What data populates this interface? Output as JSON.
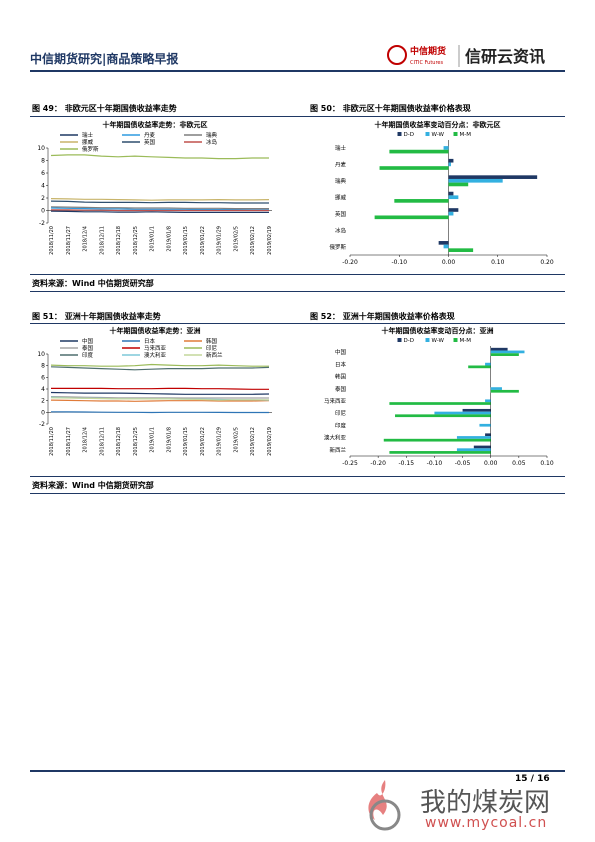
{
  "header": {
    "left": "中信期货研究|商品策略早报",
    "logo_cn": "中信期货",
    "logo_en": "CITIC Futures",
    "brand": "信研云资讯"
  },
  "figures": [
    {
      "number": "图 49：",
      "title": "非欧元区十年期国债收益率走势"
    },
    {
      "number": "图 50：",
      "title": "非欧元区十年期国债收益率价格表现"
    },
    {
      "number": "图 51：",
      "title": "亚洲十年期国债收益率走势"
    },
    {
      "number": "图 52：",
      "title": "亚洲十年期国债收益率价格表现"
    }
  ],
  "sources": [
    "资料来源：Wind  中信期货研究部",
    "资料来源：Wind  中信期货研究部"
  ],
  "footer": {
    "page": "15 / 16"
  },
  "watermark": {
    "cn": "我的煤炭网",
    "url": "www.mycoal.cn"
  },
  "chart_data": [
    {
      "type": "line",
      "title": "十年期国债收益率走势：非欧元区",
      "categories": [
        "2018/11/20",
        "2018/11/27",
        "2018/12/4",
        "2018/12/11",
        "2018/12/18",
        "2018/12/25",
        "2019/01/1",
        "2019/01/8",
        "2019/01/15",
        "2019/01/22",
        "2019/01/29",
        "2019/02/5",
        "2019/02/12",
        "2019/02/19"
      ],
      "ylim": [
        -2,
        10
      ],
      "yticks": [
        -2,
        0,
        2,
        4,
        6,
        8,
        10
      ],
      "series": [
        {
          "name": "瑞士",
          "color": "#1f3864",
          "values": [
            -0.1,
            -0.15,
            -0.2,
            -0.2,
            -0.25,
            -0.25,
            -0.2,
            -0.25,
            -0.3,
            -0.3,
            -0.3,
            -0.3,
            -0.3,
            -0.3
          ]
        },
        {
          "name": "丹麦",
          "color": "#2e9be0",
          "values": [
            0.4,
            0.35,
            0.3,
            0.25,
            0.25,
            0.2,
            0.2,
            0.2,
            0.2,
            0.15,
            0.15,
            0.15,
            0.1,
            0.1
          ]
        },
        {
          "name": "瑞典",
          "color": "#7f7f7f",
          "values": [
            0.6,
            0.55,
            0.5,
            0.45,
            0.45,
            0.4,
            0.4,
            0.4,
            0.35,
            0.35,
            0.35,
            0.3,
            0.3,
            0.3
          ]
        },
        {
          "name": "挪威",
          "color": "#c8b46a",
          "values": [
            1.9,
            1.85,
            1.8,
            1.8,
            1.75,
            1.7,
            1.65,
            1.7,
            1.7,
            1.7,
            1.75,
            1.7,
            1.7,
            1.75
          ]
        },
        {
          "name": "英国",
          "color": "#2f4f6f",
          "values": [
            1.5,
            1.45,
            1.35,
            1.3,
            1.3,
            1.3,
            1.25,
            1.3,
            1.3,
            1.25,
            1.25,
            1.2,
            1.2,
            1.2
          ]
        },
        {
          "name": "冰岛",
          "color": "#c0504d",
          "values": [
            0.1,
            0.1,
            0.05,
            0.05,
            0.0,
            0.0,
            0.0,
            0.0,
            0.0,
            0.0,
            0.0,
            0.0,
            0.0,
            0.0
          ]
        },
        {
          "name": "俄罗斯",
          "color": "#9bbb59",
          "values": [
            8.8,
            8.9,
            8.9,
            8.7,
            8.6,
            8.7,
            8.6,
            8.5,
            8.4,
            8.4,
            8.3,
            8.3,
            8.4,
            8.4
          ]
        }
      ]
    },
    {
      "type": "hbar",
      "title": "十年期国债收益率变动百分点：非欧元区",
      "categories": [
        "瑞士",
        "丹麦",
        "瑞典",
        "挪威",
        "英国",
        "冰岛",
        "俄罗斯"
      ],
      "xlim": [
        -0.2,
        0.2
      ],
      "xticks": [
        {
          "value": -0.2,
          "label": "-0.20"
        },
        {
          "value": -0.1,
          "label": "-0.10"
        },
        {
          "value": 0,
          "label": "0.00"
        },
        {
          "value": 0.1,
          "label": "0.10"
        },
        {
          "value": 0.2,
          "label": "0.20"
        }
      ],
      "series": [
        {
          "name": "D-D",
          "color": "#1f3864",
          "values": [
            0,
            0.01,
            0.18,
            0.01,
            0.02,
            0,
            -0.02
          ]
        },
        {
          "name": "W-W",
          "color": "#33b0e0",
          "values": [
            -0.01,
            0.005,
            0.11,
            0.02,
            0.01,
            0,
            -0.01
          ]
        },
        {
          "name": "M-M",
          "color": "#22bb44",
          "values": [
            -0.12,
            -0.14,
            0.04,
            -0.11,
            -0.15,
            0,
            0.05
          ]
        }
      ]
    },
    {
      "type": "line",
      "title": "十年期国债收益率走势：亚洲",
      "categories": [
        "2018/11/20",
        "2018/11/27",
        "2018/12/4",
        "2018/12/11",
        "2018/12/18",
        "2018/12/25",
        "2019/01/1",
        "2019/01/8",
        "2019/01/15",
        "2019/01/22",
        "2019/01/29",
        "2019/02/5",
        "2019/02/12",
        "2019/02/19"
      ],
      "ylim": [
        -2,
        10
      ],
      "yticks": [
        -2,
        0,
        2,
        4,
        6,
        8,
        10
      ],
      "series": [
        {
          "name": "中国",
          "color": "#1f3864",
          "values": [
            3.4,
            3.35,
            3.3,
            3.3,
            3.3,
            3.25,
            3.2,
            3.15,
            3.1,
            3.1,
            3.1,
            3.1,
            3.1,
            3.15
          ]
        },
        {
          "name": "日本",
          "color": "#2e75b6",
          "values": [
            0.1,
            0.08,
            0.05,
            0.03,
            0,
            0,
            -0.02,
            0,
            0,
            0,
            -0.01,
            -0.02,
            -0.03,
            -0.03
          ]
        },
        {
          "name": "韩国",
          "color": "#e07b39",
          "values": [
            2.1,
            2.05,
            2.0,
            1.95,
            1.95,
            1.9,
            1.95,
            2.0,
            2.0,
            2.0,
            1.95,
            1.95,
            1.95,
            2.0
          ]
        },
        {
          "name": "泰国",
          "color": "#a5a5a5",
          "values": [
            2.7,
            2.65,
            2.6,
            2.55,
            2.5,
            2.5,
            2.5,
            2.5,
            2.45,
            2.45,
            2.45,
            2.45,
            2.45,
            2.45
          ]
        },
        {
          "name": "马来西亚",
          "color": "#c00000",
          "values": [
            4.1,
            4.1,
            4.1,
            4.1,
            4.05,
            4.05,
            4.05,
            4.1,
            4.1,
            4.05,
            4.05,
            4.0,
            3.95,
            3.95
          ]
        },
        {
          "name": "印尼",
          "color": "#9bbb59",
          "values": [
            8.1,
            8.0,
            8.0,
            7.9,
            7.9,
            8.0,
            8.2,
            8.1,
            8.0,
            8.0,
            8.1,
            8.0,
            7.9,
            7.9
          ]
        },
        {
          "name": "印度",
          "color": "#4f6f6f",
          "values": [
            7.8,
            7.7,
            7.6,
            7.5,
            7.4,
            7.3,
            7.4,
            7.5,
            7.5,
            7.5,
            7.6,
            7.6,
            7.6,
            7.7
          ]
        },
        {
          "name": "澳大利亚",
          "color": "#7ec8d8",
          "values": [
            2.6,
            2.5,
            2.4,
            2.4,
            2.3,
            2.3,
            2.3,
            2.3,
            2.25,
            2.25,
            2.2,
            2.15,
            2.15,
            2.1
          ]
        },
        {
          "name": "新西兰",
          "color": "#c4d79b",
          "values": [
            2.5,
            2.45,
            2.4,
            2.35,
            2.3,
            2.3,
            2.3,
            2.3,
            2.25,
            2.2,
            2.1,
            2.15,
            2.15,
            2.15
          ]
        }
      ]
    },
    {
      "type": "hbar",
      "title": "十年期国债收益率变动百分点：亚洲",
      "categories": [
        "中国",
        "日本",
        "韩国",
        "泰国",
        "马来西亚",
        "印尼",
        "印度",
        "澳大利亚",
        "新西兰"
      ],
      "xlim": [
        -0.25,
        0.1
      ],
      "xticks": [
        {
          "value": -0.25,
          "label": "-0.25"
        },
        {
          "value": -0.2,
          "label": "-0.20"
        },
        {
          "value": -0.15,
          "label": "-0.15"
        },
        {
          "value": -0.1,
          "label": "-0.10"
        },
        {
          "value": -0.05,
          "label": "-0.05"
        },
        {
          "value": 0,
          "label": "0.00"
        },
        {
          "value": 0.05,
          "label": "0.05"
        },
        {
          "value": 0.1,
          "label": "0.10"
        }
      ],
      "series": [
        {
          "name": "D-D",
          "color": "#1f3864",
          "values": [
            0.03,
            0,
            0,
            0,
            0,
            -0.05,
            0,
            -0.01,
            -0.03
          ]
        },
        {
          "name": "W-W",
          "color": "#33b0e0",
          "values": [
            0.06,
            -0.01,
            0,
            0.02,
            -0.01,
            -0.1,
            -0.02,
            -0.06,
            -0.06
          ]
        },
        {
          "name": "M-M",
          "color": "#22bb44",
          "values": [
            0.05,
            -0.04,
            0,
            0.05,
            -0.18,
            -0.17,
            0,
            -0.19,
            -0.18
          ]
        }
      ]
    }
  ]
}
